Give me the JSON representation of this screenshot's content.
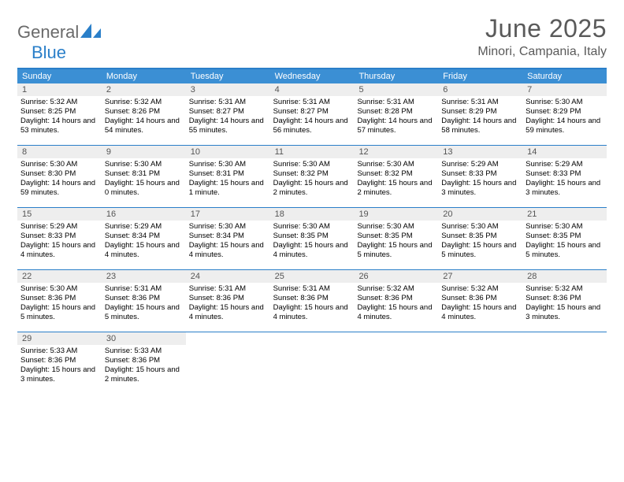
{
  "logo": {
    "text1": "General",
    "text2": "Blue"
  },
  "title": "June 2025",
  "location": "Minori, Campania, Italy",
  "colors": {
    "accent": "#3b8fd4",
    "border": "#2a7fc9",
    "daynum_bg": "#eeeeee",
    "text_gray": "#5a5a5a",
    "logo_gray": "#6a6a6a"
  },
  "weekdays": [
    "Sunday",
    "Monday",
    "Tuesday",
    "Wednesday",
    "Thursday",
    "Friday",
    "Saturday"
  ],
  "weeks": [
    [
      {
        "n": "1",
        "sr": "5:32 AM",
        "ss": "8:25 PM",
        "dl": "14 hours and 53 minutes."
      },
      {
        "n": "2",
        "sr": "5:32 AM",
        "ss": "8:26 PM",
        "dl": "14 hours and 54 minutes."
      },
      {
        "n": "3",
        "sr": "5:31 AM",
        "ss": "8:27 PM",
        "dl": "14 hours and 55 minutes."
      },
      {
        "n": "4",
        "sr": "5:31 AM",
        "ss": "8:27 PM",
        "dl": "14 hours and 56 minutes."
      },
      {
        "n": "5",
        "sr": "5:31 AM",
        "ss": "8:28 PM",
        "dl": "14 hours and 57 minutes."
      },
      {
        "n": "6",
        "sr": "5:31 AM",
        "ss": "8:29 PM",
        "dl": "14 hours and 58 minutes."
      },
      {
        "n": "7",
        "sr": "5:30 AM",
        "ss": "8:29 PM",
        "dl": "14 hours and 59 minutes."
      }
    ],
    [
      {
        "n": "8",
        "sr": "5:30 AM",
        "ss": "8:30 PM",
        "dl": "14 hours and 59 minutes."
      },
      {
        "n": "9",
        "sr": "5:30 AM",
        "ss": "8:31 PM",
        "dl": "15 hours and 0 minutes."
      },
      {
        "n": "10",
        "sr": "5:30 AM",
        "ss": "8:31 PM",
        "dl": "15 hours and 1 minute."
      },
      {
        "n": "11",
        "sr": "5:30 AM",
        "ss": "8:32 PM",
        "dl": "15 hours and 2 minutes."
      },
      {
        "n": "12",
        "sr": "5:30 AM",
        "ss": "8:32 PM",
        "dl": "15 hours and 2 minutes."
      },
      {
        "n": "13",
        "sr": "5:29 AM",
        "ss": "8:33 PM",
        "dl": "15 hours and 3 minutes."
      },
      {
        "n": "14",
        "sr": "5:29 AM",
        "ss": "8:33 PM",
        "dl": "15 hours and 3 minutes."
      }
    ],
    [
      {
        "n": "15",
        "sr": "5:29 AM",
        "ss": "8:33 PM",
        "dl": "15 hours and 4 minutes."
      },
      {
        "n": "16",
        "sr": "5:29 AM",
        "ss": "8:34 PM",
        "dl": "15 hours and 4 minutes."
      },
      {
        "n": "17",
        "sr": "5:30 AM",
        "ss": "8:34 PM",
        "dl": "15 hours and 4 minutes."
      },
      {
        "n": "18",
        "sr": "5:30 AM",
        "ss": "8:35 PM",
        "dl": "15 hours and 4 minutes."
      },
      {
        "n": "19",
        "sr": "5:30 AM",
        "ss": "8:35 PM",
        "dl": "15 hours and 5 minutes."
      },
      {
        "n": "20",
        "sr": "5:30 AM",
        "ss": "8:35 PM",
        "dl": "15 hours and 5 minutes."
      },
      {
        "n": "21",
        "sr": "5:30 AM",
        "ss": "8:35 PM",
        "dl": "15 hours and 5 minutes."
      }
    ],
    [
      {
        "n": "22",
        "sr": "5:30 AM",
        "ss": "8:36 PM",
        "dl": "15 hours and 5 minutes."
      },
      {
        "n": "23",
        "sr": "5:31 AM",
        "ss": "8:36 PM",
        "dl": "15 hours and 5 minutes."
      },
      {
        "n": "24",
        "sr": "5:31 AM",
        "ss": "8:36 PM",
        "dl": "15 hours and 4 minutes."
      },
      {
        "n": "25",
        "sr": "5:31 AM",
        "ss": "8:36 PM",
        "dl": "15 hours and 4 minutes."
      },
      {
        "n": "26",
        "sr": "5:32 AM",
        "ss": "8:36 PM",
        "dl": "15 hours and 4 minutes."
      },
      {
        "n": "27",
        "sr": "5:32 AM",
        "ss": "8:36 PM",
        "dl": "15 hours and 4 minutes."
      },
      {
        "n": "28",
        "sr": "5:32 AM",
        "ss": "8:36 PM",
        "dl": "15 hours and 3 minutes."
      }
    ],
    [
      {
        "n": "29",
        "sr": "5:33 AM",
        "ss": "8:36 PM",
        "dl": "15 hours and 3 minutes."
      },
      {
        "n": "30",
        "sr": "5:33 AM",
        "ss": "8:36 PM",
        "dl": "15 hours and 2 minutes."
      },
      null,
      null,
      null,
      null,
      null
    ]
  ],
  "labels": {
    "sunrise": "Sunrise:",
    "sunset": "Sunset:",
    "daylight": "Daylight:"
  }
}
